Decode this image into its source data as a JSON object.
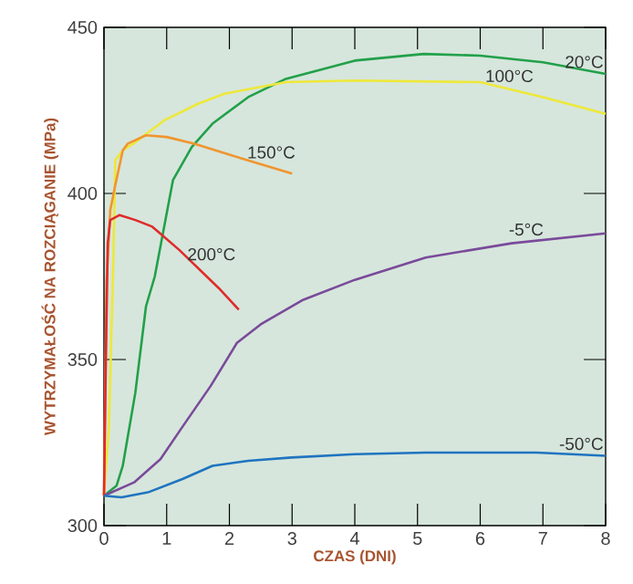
{
  "chart_data": {
    "type": "line",
    "xlabel": "CZAS (DNI)",
    "ylabel": "WYTRZYMAŁOŚĆ NA ROZCIĄGANIE (MPa)",
    "xlim": [
      0,
      8
    ],
    "ylim": [
      300,
      450
    ],
    "xticks": [
      0,
      1,
      2,
      3,
      4,
      5,
      6,
      7,
      8
    ],
    "yticks": [
      300,
      350,
      400,
      450
    ],
    "grid": false,
    "legend": false,
    "marker": "none",
    "line_style": "solid",
    "series": [
      {
        "name": "20°C",
        "color": "#22a04a",
        "x": [
          0,
          0.2,
          0.3,
          0.5,
          0.67,
          0.81,
          1.1,
          1.4,
          1.73,
          2.3,
          2.9,
          4,
          5.1,
          6,
          7,
          8
        ],
        "values": [
          309,
          312,
          318,
          340,
          366,
          375,
          404,
          414,
          421,
          429,
          434.5,
          440,
          442,
          441.5,
          439.5,
          436
        ]
      },
      {
        "name": "100°C",
        "color": "#eee83a",
        "x": [
          0,
          0.08,
          0.15,
          0.18,
          0.3,
          0.47,
          0.96,
          1.5,
          1.92,
          2.9,
          4,
          6,
          7,
          8
        ],
        "values": [
          309,
          330,
          380,
          410,
          413,
          415,
          422,
          427,
          430,
          433.5,
          434,
          433.5,
          429,
          424
        ]
      },
      {
        "name": "150°C",
        "color": "#f0952f",
        "x": [
          0,
          0.02,
          0.04,
          0.1,
          0.18,
          0.3,
          0.38,
          0.67,
          1,
          1.44,
          2.2,
          3
        ],
        "values": [
          309,
          340,
          373,
          395,
          402.5,
          413,
          415,
          417.5,
          417,
          415,
          410.5,
          406
        ]
      },
      {
        "name": "200°C",
        "color": "#e02a2a",
        "x": [
          0,
          0.03,
          0.06,
          0.1,
          0.25,
          0.5,
          0.77,
          1.2,
          1.83,
          2.15
        ],
        "values": [
          309,
          350,
          385,
          392,
          393.5,
          392,
          390,
          383,
          371.5,
          365
        ]
      },
      {
        "name": "-5°C",
        "color": "#7a4a9a",
        "x": [
          0,
          0.48,
          0.9,
          1.25,
          1.7,
          2.12,
          2.5,
          3.18,
          4,
          5.13,
          6.5,
          8
        ],
        "values": [
          309,
          313,
          320,
          329.7,
          342,
          355,
          360.6,
          368,
          374,
          380.7,
          385,
          388
        ]
      },
      {
        "name": "-50°C",
        "color": "#1f74c0",
        "x": [
          0,
          0.28,
          0.7,
          1.25,
          1.73,
          2.3,
          2.99,
          4,
          5.13,
          6,
          6.9,
          8
        ],
        "values": [
          309,
          308.5,
          310,
          314,
          318,
          319.5,
          320.5,
          321.5,
          322,
          322,
          322,
          321
        ]
      }
    ]
  }
}
